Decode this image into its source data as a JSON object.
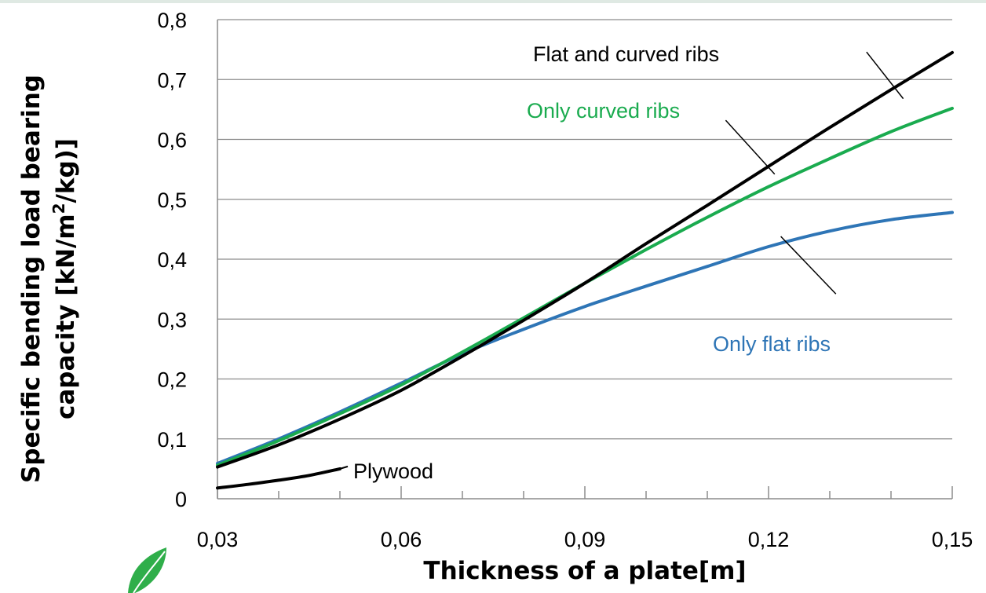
{
  "chart_data": {
    "type": "line",
    "title": "",
    "xlabel": "Thickness of a plate[m]",
    "ylabel_line1": "Specific bending load bearing",
    "ylabel_line2_prefix": "capacity [kN/m",
    "ylabel_line2_sup": "2",
    "ylabel_line2_suffix": "/kg)]",
    "xlim": [
      0.03,
      0.15
    ],
    "ylim": [
      0,
      0.8
    ],
    "x_ticks": [
      0.03,
      0.06,
      0.09,
      0.12,
      0.15
    ],
    "x_tick_labels": [
      "0,03",
      "0,06",
      "0,09",
      "0,12",
      "0,15"
    ],
    "x_minor_tick_step": 0.01,
    "y_ticks": [
      0,
      0.1,
      0.2,
      0.3,
      0.4,
      0.5,
      0.6,
      0.7,
      0.8
    ],
    "y_tick_labels": [
      "0",
      "0,1",
      "0,2",
      "0,3",
      "0,4",
      "0,5",
      "0,6",
      "0,7",
      "0,8"
    ],
    "grid": "horizontal",
    "legend": "none",
    "series": [
      {
        "name": "Flat and curved ribs",
        "color": "#000000",
        "x": [
          0.03,
          0.04,
          0.05,
          0.06,
          0.07,
          0.08,
          0.09,
          0.1,
          0.11,
          0.12,
          0.13,
          0.14,
          0.15
        ],
        "y": [
          0.053,
          0.09,
          0.133,
          0.181,
          0.238,
          0.298,
          0.36,
          0.426,
          0.49,
          0.555,
          0.62,
          0.683,
          0.745
        ]
      },
      {
        "name": "Only curved ribs",
        "color": "#1aab4f",
        "x": [
          0.03,
          0.04,
          0.05,
          0.06,
          0.07,
          0.08,
          0.09,
          0.1,
          0.11,
          0.12,
          0.13,
          0.14,
          0.15
        ],
        "y": [
          0.056,
          0.097,
          0.142,
          0.19,
          0.245,
          0.302,
          0.36,
          0.416,
          0.47,
          0.521,
          0.568,
          0.613,
          0.652
        ]
      },
      {
        "name": "Only flat ribs",
        "color": "#2e75b6",
        "x": [
          0.03,
          0.04,
          0.05,
          0.06,
          0.07,
          0.08,
          0.09,
          0.1,
          0.11,
          0.12,
          0.13,
          0.14,
          0.15
        ],
        "y": [
          0.059,
          0.1,
          0.145,
          0.193,
          0.242,
          0.283,
          0.321,
          0.355,
          0.388,
          0.421,
          0.447,
          0.466,
          0.478
        ]
      },
      {
        "name": "Plywood",
        "color": "#000000",
        "x": [
          0.03,
          0.035,
          0.04,
          0.045,
          0.05
        ],
        "y": [
          0.018,
          0.024,
          0.031,
          0.039,
          0.05
        ]
      }
    ],
    "annotations": [
      {
        "text": "Flat and curved ribs",
        "color": "#000000",
        "series_index": 0,
        "leader_to": [
          0.142,
          0.668
        ],
        "leader_from": [
          0.136,
          0.746
        ]
      },
      {
        "text": "Only curved ribs",
        "color": "#1aab4f",
        "series_index": 1,
        "leader_to": [
          0.121,
          0.542
        ],
        "leader_from": [
          0.113,
          0.632
        ]
      },
      {
        "text": "Only flat ribs",
        "color": "#2e75b6",
        "series_index": 2,
        "leader_to": [
          0.131,
          0.342
        ],
        "leader_from": [
          0.122,
          0.438
        ]
      },
      {
        "text": "Plywood",
        "color": "#000000",
        "series_index": 3,
        "leader_to": null,
        "leader_from": null
      }
    ]
  }
}
